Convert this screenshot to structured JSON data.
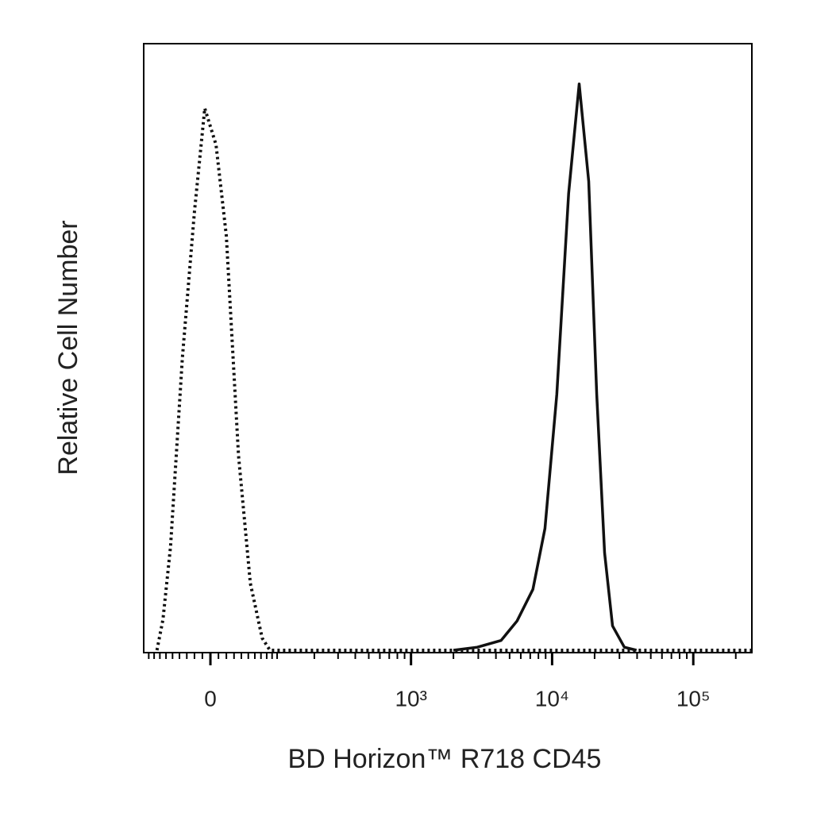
{
  "chart_data": {
    "type": "line",
    "xlabel": "BD Horizon™ R718 CD45",
    "ylabel": "Relative Cell Number",
    "xscale": "biexponential",
    "xlim": [
      -100,
      260000
    ],
    "ylim": [
      0,
      100
    ],
    "xticks": [
      0,
      {
        "value": 1000,
        "label": "10³"
      },
      {
        "value": 10000,
        "label": "10⁴"
      },
      {
        "value": 100000,
        "label": "10⁵"
      }
    ],
    "xminorticks": [
      -90,
      -80,
      -70,
      -60,
      -50,
      -40,
      -30,
      -20,
      -10,
      10,
      20,
      30,
      40,
      50,
      60,
      70,
      80,
      90,
      100,
      200,
      300,
      400,
      500,
      600,
      700,
      800,
      900,
      2000,
      3000,
      4000,
      5000,
      6000,
      7000,
      8000,
      9000,
      20000,
      30000,
      40000,
      50000,
      60000,
      70000,
      80000,
      90000,
      200000
    ],
    "series": [
      {
        "color": "#111111",
        "dash": "dotted",
        "x": [
          -75,
          -65,
          -53,
          -36,
          -20,
          -7,
          0,
          7,
          20,
          36,
          53,
          72,
          86,
          1000,
          260000
        ],
        "values": [
          0,
          5,
          17,
          48,
          72,
          89,
          86,
          83,
          68,
          32,
          11,
          2,
          0,
          0,
          0
        ]
      },
      {
        "color": "#111111",
        "dash": "solid",
        "x": [
          2000,
          2950,
          4350,
          5640,
          7310,
          8900,
          10800,
          13100,
          15550,
          18170,
          20700,
          23550,
          26800,
          32500,
          39600
        ],
        "values": [
          0,
          0.5,
          1.6,
          4.8,
          10,
          20,
          42,
          75,
          93,
          77,
          42,
          16,
          4,
          0.5,
          0
        ]
      }
    ]
  }
}
